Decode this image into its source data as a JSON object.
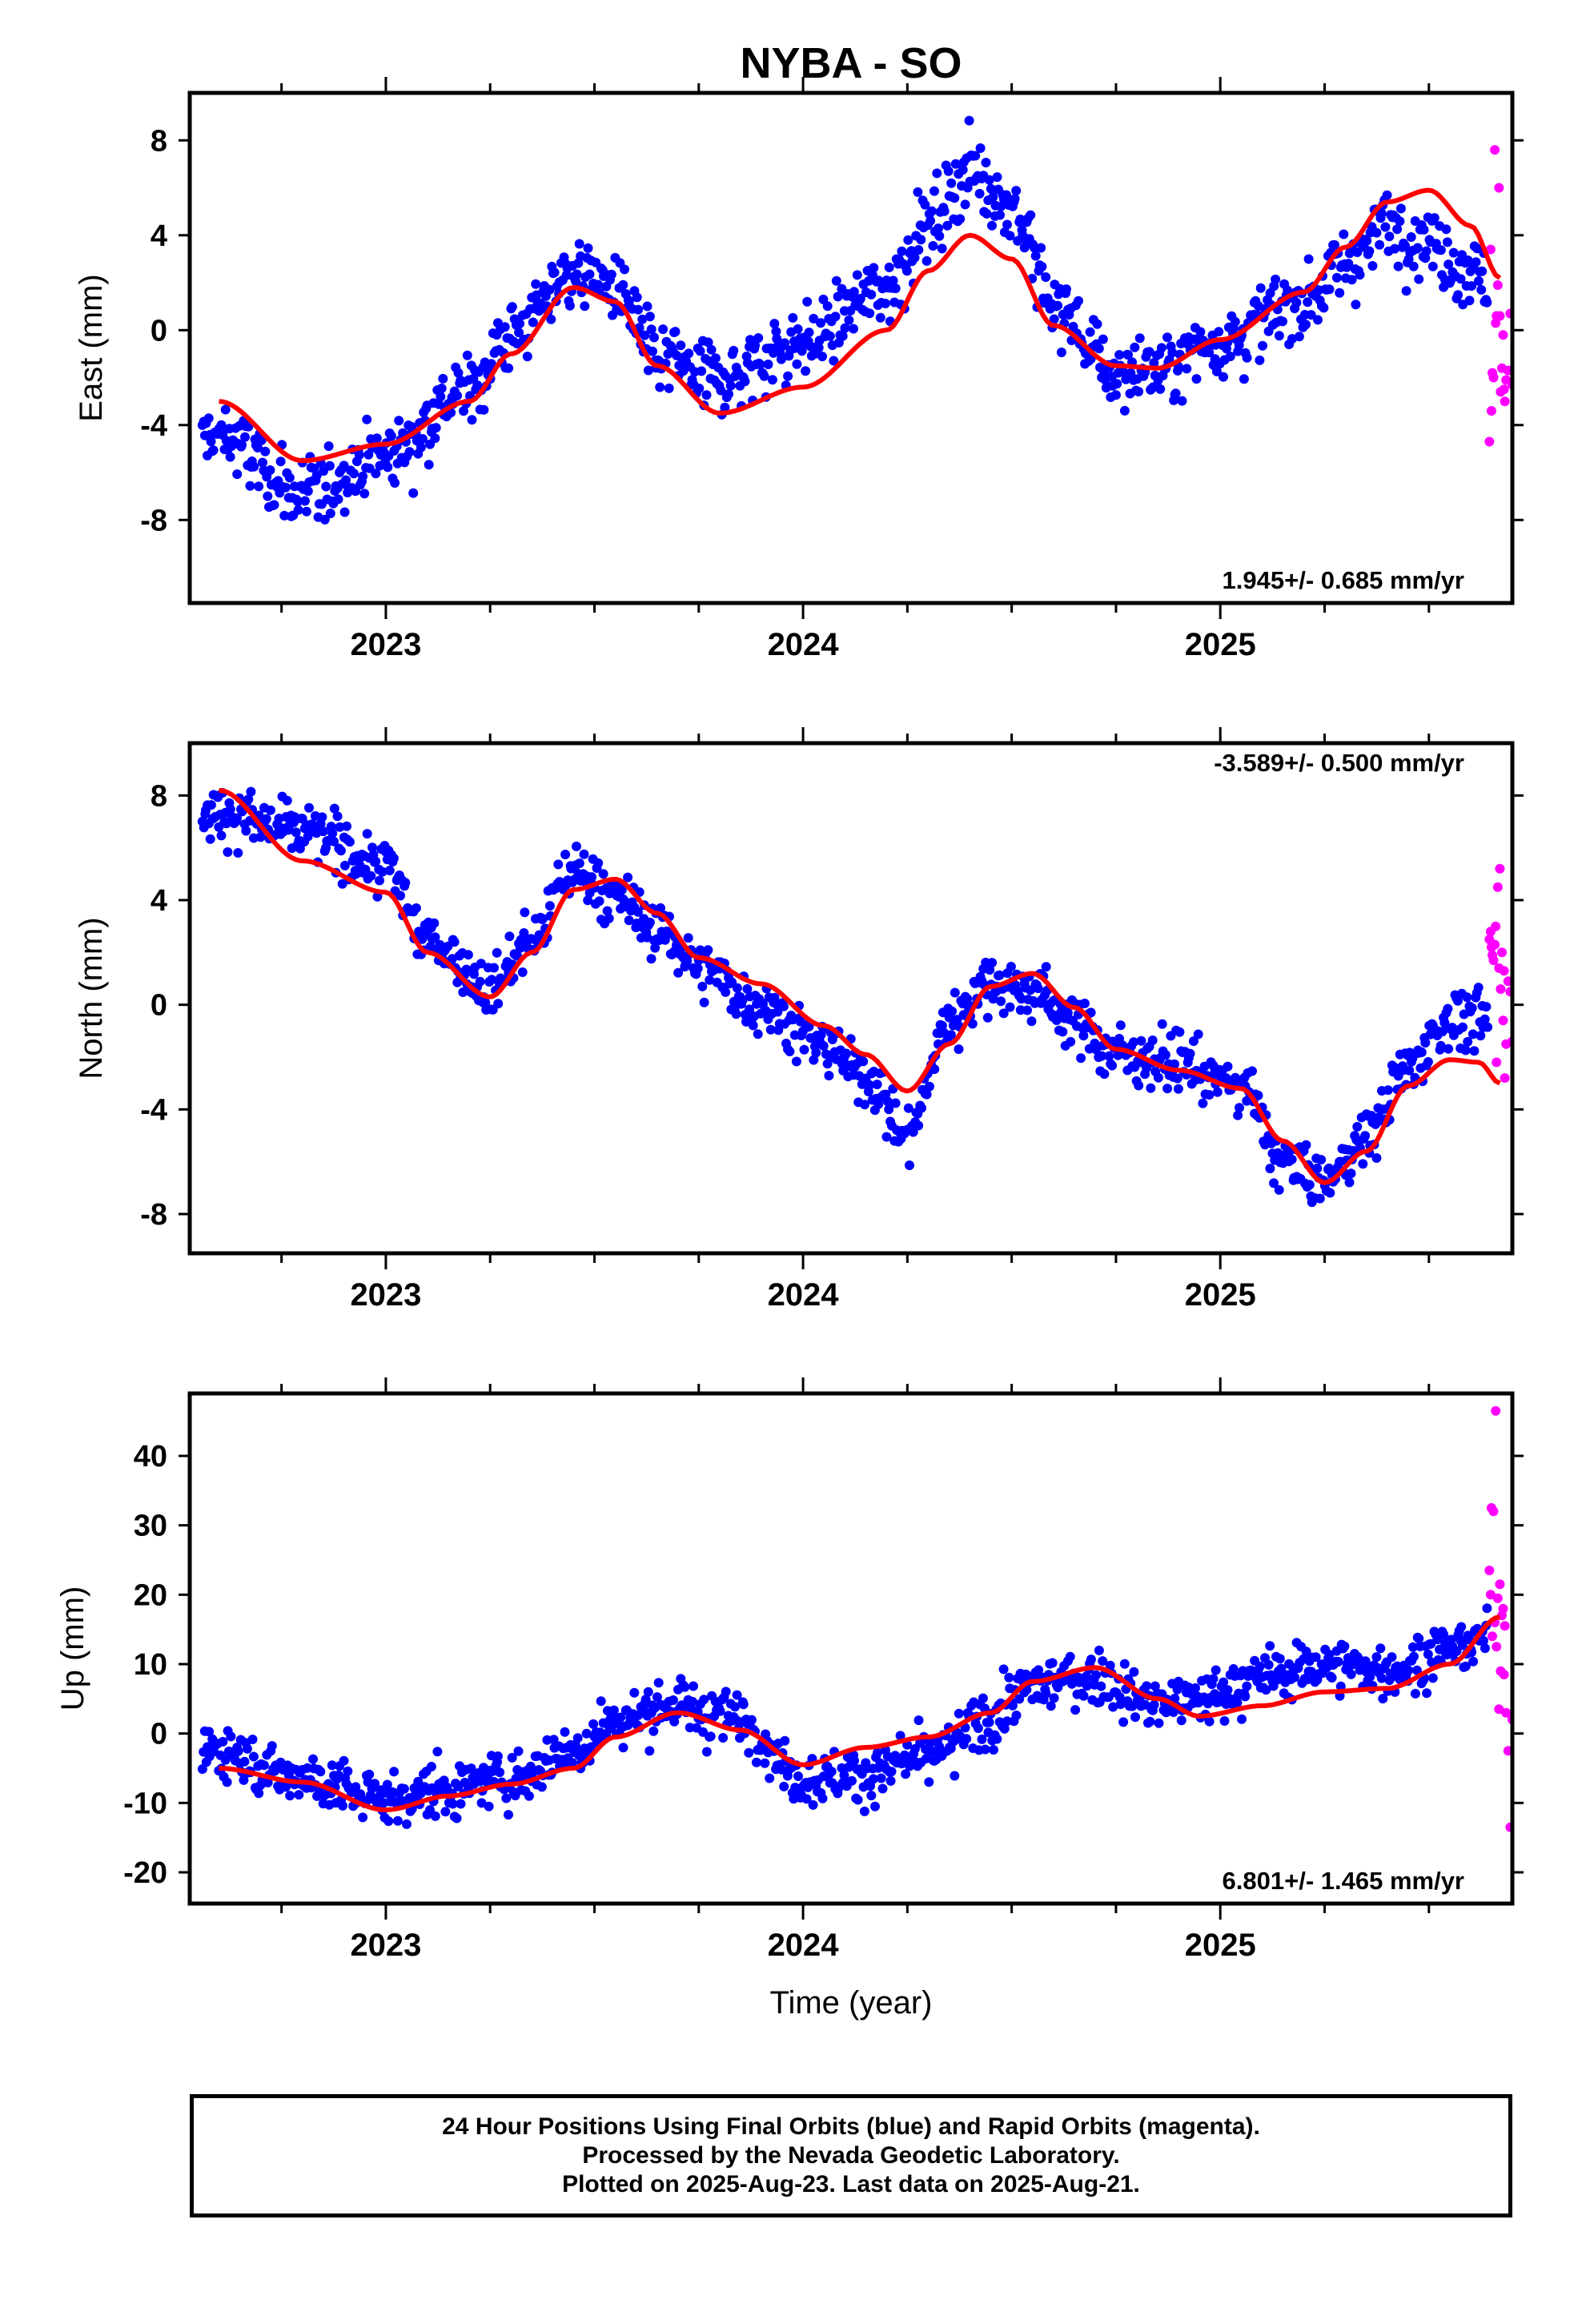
{
  "title": "NYBA - SO",
  "colors": {
    "final": "#0000ff",
    "rapid": "#ff00ff",
    "fit": "#ff0000",
    "frame": "#000000"
  },
  "footer": {
    "line1": "24 Hour Positions Using Final Orbits (blue) and Rapid Orbits (magenta).",
    "line2": "Processed by the Nevada Geodetic Laboratory.",
    "line3": "Plotted on 2025-Aug-23. Last data on 2025-Aug-21."
  },
  "chart_data": [
    {
      "type": "scatter",
      "component": "east",
      "ylabel": "East (mm)",
      "rate_label": "1.945+/- 0.685 mm/yr",
      "rate_position": "bottom-right",
      "xlim": [
        2022.53,
        2025.7
      ],
      "ylim": [
        -11.5,
        10
      ],
      "yticks": [
        -8,
        -4,
        0,
        4,
        8
      ],
      "xticks": [
        2023,
        2024,
        2025
      ],
      "xtick_labels": [
        "2023",
        "2024",
        "2025"
      ],
      "grid": false,
      "fit": {
        "x": [
          2022.6,
          2022.8,
          2023.0,
          2023.2,
          2023.3,
          2023.45,
          2023.55,
          2023.65,
          2023.8,
          2024.0,
          2024.2,
          2024.3,
          2024.4,
          2024.5,
          2024.6,
          2024.75,
          2024.85,
          2025.0,
          2025.2,
          2025.3,
          2025.4,
          2025.5,
          2025.6,
          2025.67
        ],
        "y": [
          -3.0,
          -5.5,
          -4.8,
          -3.0,
          -1.0,
          1.8,
          1.2,
          -1.5,
          -3.5,
          -2.4,
          0.0,
          2.5,
          4.0,
          3.0,
          0.2,
          -1.5,
          -1.6,
          -0.4,
          1.6,
          3.5,
          5.4,
          5.9,
          4.4,
          2.2
        ]
      },
      "final_mean": {
        "x": [
          2022.6,
          2022.8,
          2023.0,
          2023.2,
          2023.3,
          2023.45,
          2023.55,
          2023.65,
          2023.8,
          2024.0,
          2024.2,
          2024.3,
          2024.4,
          2024.5,
          2024.6,
          2024.75,
          2024.85,
          2025.0,
          2025.2,
          2025.3,
          2025.4,
          2025.5,
          2025.6,
          2025.67
        ],
        "y": [
          -4.5,
          -7.0,
          -5.2,
          -2.5,
          -0.2,
          2.5,
          1.8,
          -1.2,
          -2.0,
          -0.5,
          1.8,
          4.5,
          6.8,
          5.2,
          1.0,
          -1.8,
          -1.7,
          -0.4,
          1.2,
          2.8,
          4.5,
          3.6,
          2.6,
          1.5
        ]
      },
      "final_range": [
        2022.56,
        2025.64
      ],
      "final_scatter": 1.3,
      "final_count": 1000,
      "rapid": {
        "x": [
          2025.645,
          2025.65,
          2025.655,
          2025.66,
          2025.665,
          2025.67,
          2025.675,
          2025.68,
          2025.685,
          2025.69,
          2025.695,
          2025.7,
          2025.648,
          2025.652,
          2025.658,
          2025.662,
          2025.668,
          2025.672,
          2025.678,
          2025.682
        ],
        "y": [
          -4.7,
          -3.4,
          -2.0,
          0.3,
          1.9,
          0.6,
          -1.6,
          -2.5,
          -2.1,
          -1.7,
          0.7,
          -2.3,
          3.4,
          -1.8,
          7.6,
          0.6,
          6.0,
          -2.6,
          -0.2,
          -3.0
        ]
      }
    },
    {
      "type": "scatter",
      "component": "north",
      "ylabel": "North (mm)",
      "rate_label": "-3.589+/- 0.500 mm/yr",
      "rate_position": "top-right",
      "xlim": [
        2022.53,
        2025.7
      ],
      "ylim": [
        -9.5,
        10
      ],
      "yticks": [
        -8,
        -4,
        0,
        4,
        8
      ],
      "xticks": [
        2023,
        2024,
        2025
      ],
      "xtick_labels": [
        "2023",
        "2024",
        "2025"
      ],
      "grid": false,
      "fit": {
        "x": [
          2022.6,
          2022.8,
          2023.0,
          2023.1,
          2023.25,
          2023.35,
          2023.45,
          2023.55,
          2023.65,
          2023.75,
          2023.9,
          2024.05,
          2024.15,
          2024.25,
          2024.35,
          2024.45,
          2024.55,
          2024.65,
          2024.75,
          2024.9,
          2025.05,
          2025.15,
          2025.25,
          2025.35,
          2025.45,
          2025.55,
          2025.62,
          2025.67
        ],
        "y": [
          8.2,
          5.5,
          4.3,
          2.0,
          0.3,
          2.0,
          4.4,
          4.8,
          3.5,
          1.8,
          0.8,
          -0.8,
          -1.9,
          -3.3,
          -1.5,
          0.7,
          1.2,
          -0.1,
          -1.7,
          -2.5,
          -3.2,
          -5.2,
          -6.8,
          -5.6,
          -3.1,
          -2.1,
          -2.2,
          -3.0
        ]
      },
      "final_mean": {
        "x": [
          2022.6,
          2022.8,
          2023.0,
          2023.1,
          2023.25,
          2023.35,
          2023.45,
          2023.55,
          2023.65,
          2023.75,
          2023.9,
          2024.05,
          2024.15,
          2024.25,
          2024.35,
          2024.45,
          2024.55,
          2024.65,
          2024.75,
          2024.9,
          2025.05,
          2025.15,
          2025.25,
          2025.35,
          2025.45,
          2025.55,
          2025.62,
          2025.67
        ],
        "y": [
          7.3,
          6.6,
          5.3,
          2.5,
          0.6,
          2.5,
          5.2,
          4.1,
          2.9,
          1.5,
          0.0,
          -1.6,
          -2.7,
          -5.0,
          -0.6,
          0.9,
          0.5,
          -0.6,
          -1.8,
          -2.2,
          -3.1,
          -6.0,
          -6.8,
          -5.0,
          -2.4,
          -0.5,
          -0.7,
          -1.0
        ]
      },
      "final_range": [
        2022.56,
        2025.64
      ],
      "final_scatter": 0.9,
      "final_count": 1000,
      "rapid": {
        "x": [
          2025.645,
          2025.65,
          2025.655,
          2025.66,
          2025.665,
          2025.67,
          2025.675,
          2025.68,
          2025.685,
          2025.69,
          2025.695,
          2025.7,
          2025.648,
          2025.652,
          2025.658,
          2025.662,
          2025.668,
          2025.672,
          2025.678,
          2025.682
        ],
        "y": [
          2.5,
          2.2,
          1.7,
          3.0,
          4.5,
          5.2,
          2.0,
          1.3,
          -1.5,
          0.9,
          0.5,
          -1.4,
          2.8,
          1.9,
          2.3,
          -2.2,
          1.4,
          0.6,
          -0.6,
          -2.8
        ]
      }
    },
    {
      "type": "scatter",
      "component": "up",
      "ylabel": "Up (mm)",
      "xlabel": "Time (year)",
      "rate_label": "6.801+/- 1.465 mm/yr",
      "rate_position": "bottom-right",
      "xlim": [
        2022.53,
        2025.7
      ],
      "ylim": [
        -24.5,
        49
      ],
      "yticks": [
        -20,
        -10,
        0,
        10,
        20,
        30,
        40
      ],
      "xticks": [
        2023,
        2024,
        2025
      ],
      "xtick_labels": [
        "2023",
        "2024",
        "2025"
      ],
      "grid": false,
      "fit": {
        "x": [
          2022.6,
          2022.8,
          2023.0,
          2023.15,
          2023.3,
          2023.45,
          2023.55,
          2023.7,
          2023.85,
          2024.0,
          2024.15,
          2024.3,
          2024.45,
          2024.55,
          2024.7,
          2024.85,
          2024.95,
          2025.1,
          2025.25,
          2025.4,
          2025.55,
          2025.67
        ],
        "y": [
          -5.0,
          -7.0,
          -11.0,
          -9.0,
          -7.3,
          -5.0,
          -0.5,
          3.0,
          0.5,
          -4.5,
          -2.0,
          -0.5,
          3.0,
          7.5,
          9.5,
          5.0,
          2.5,
          4.0,
          6.0,
          6.5,
          10.0,
          16.8
        ]
      },
      "final_mean": {
        "x": [
          2022.6,
          2022.8,
          2023.0,
          2023.15,
          2023.3,
          2023.45,
          2023.55,
          2023.7,
          2023.85,
          2024.0,
          2024.15,
          2024.3,
          2024.45,
          2024.55,
          2024.7,
          2024.85,
          2024.95,
          2025.1,
          2025.25,
          2025.4,
          2025.55,
          2025.64
        ],
        "y": [
          -2.5,
          -6.5,
          -9.5,
          -8.0,
          -6.5,
          -2.5,
          2.0,
          4.0,
          2.0,
          -6.5,
          -6.0,
          -3.5,
          2.0,
          7.0,
          8.0,
          4.0,
          5.0,
          8.0,
          10.0,
          9.0,
          12.0,
          14.0
        ]
      },
      "final_range": [
        2022.56,
        2025.64
      ],
      "final_scatter": 3.3,
      "final_count": 1000,
      "rapid": {
        "x": [
          2025.645,
          2025.65,
          2025.655,
          2025.66,
          2025.665,
          2025.67,
          2025.675,
          2025.68,
          2025.685,
          2025.69,
          2025.695,
          2025.7,
          2025.648,
          2025.652,
          2025.658,
          2025.662,
          2025.668,
          2025.672,
          2025.678,
          2025.682
        ],
        "y": [
          23.5,
          32.5,
          32.0,
          46.5,
          19.5,
          21.5,
          17.0,
          8.5,
          3.0,
          -2.5,
          -13.5,
          2.0,
          20.0,
          14.0,
          16.0,
          12.5,
          3.5,
          9.0,
          18.0,
          15.5
        ]
      }
    }
  ]
}
